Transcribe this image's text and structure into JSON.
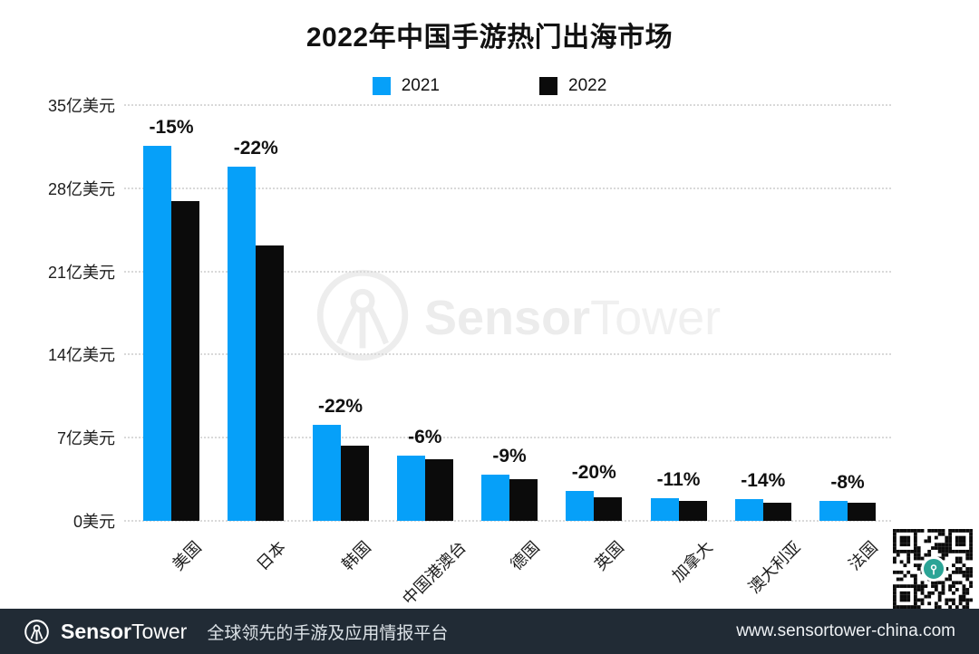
{
  "title": "2022年中国手游热门出海市场",
  "chart_data": {
    "type": "bar",
    "title": "2022年中国手游热门出海市场",
    "unit": "亿美元",
    "categories": [
      "美国",
      "日本",
      "韩国",
      "中国港澳台",
      "德国",
      "英国",
      "加拿大",
      "澳大利亚",
      "法国"
    ],
    "series": [
      {
        "name": "2021",
        "color": "#06A0F9",
        "values": [
          31.6,
          29.8,
          8.1,
          5.5,
          3.9,
          2.5,
          1.9,
          1.8,
          1.7
        ]
      },
      {
        "name": "2022",
        "color": "#0B0B0B",
        "values": [
          26.9,
          23.2,
          6.3,
          5.2,
          3.5,
          2.0,
          1.7,
          1.55,
          1.55
        ]
      }
    ],
    "change_labels": [
      "-15%",
      "-22%",
      "-22%",
      "-6%",
      "-9%",
      "-20%",
      "-11%",
      "-14%",
      "-8%"
    ],
    "y_ticks": [
      {
        "label": "35亿美元",
        "value": 35
      },
      {
        "label": "28亿美元",
        "value": 28
      },
      {
        "label": "21亿美元",
        "value": 21
      },
      {
        "label": "14亿美元",
        "value": 14
      },
      {
        "label": "7亿美元",
        "value": 7
      },
      {
        "label": "0美元",
        "value": 0
      }
    ],
    "ylim": [
      0,
      35
    ],
    "grid": "horizontal-dotted",
    "legend_position": "top-center"
  },
  "watermark": {
    "brand_bold": "Sensor",
    "brand_regular": "Tower"
  },
  "footer": {
    "brand_bold": "Sensor",
    "brand_regular": "Tower",
    "tagline": "全球领先的手游及应用情报平台",
    "url": "www.sensortower-china.com"
  },
  "colors": {
    "accent_blue": "#06A0F9",
    "bar_black": "#0B0B0B",
    "footer_bg": "#212B35",
    "qr_teal": "#2BA496",
    "gridline": "#D9D9D9"
  }
}
